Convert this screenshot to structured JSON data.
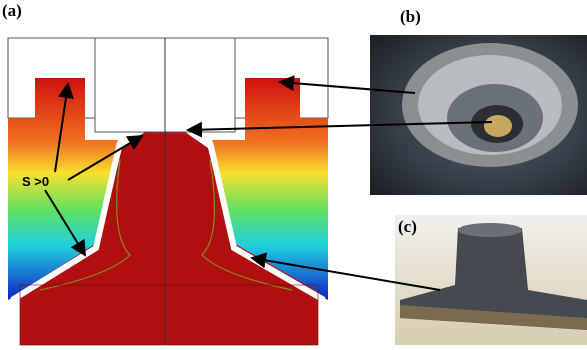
{
  "panels": [
    {
      "label": "(a)"
    },
    {
      "label": "(b)"
    },
    {
      "label": "(c)"
    }
  ],
  "annotation": "S >0"
}
